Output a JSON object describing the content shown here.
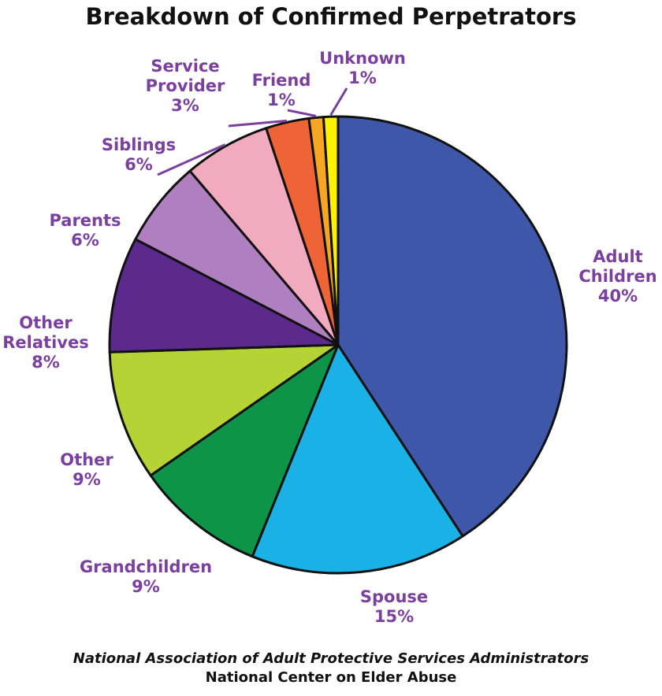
{
  "chart_data": {
    "type": "pie",
    "title": "Breakdown of Confirmed Perpetrators",
    "slices": [
      {
        "label": "Adult Children",
        "value": 40,
        "display": "40%",
        "color": "#3f57a8"
      },
      {
        "label": "Spouse",
        "value": 15,
        "display": "15%",
        "color": "#19b1e6"
      },
      {
        "label": "Grandchildren",
        "value": 9,
        "display": "9%",
        "color": "#0d9448"
      },
      {
        "label": "Other",
        "value": 9,
        "display": "9%",
        "color": "#b5d334"
      },
      {
        "label": "Other Relatives",
        "value": 8,
        "display": "8%",
        "color": "#5b2a8c"
      },
      {
        "label": "Parents",
        "value": 6,
        "display": "6%",
        "color": "#b07fbf"
      },
      {
        "label": "Siblings",
        "value": 6,
        "display": "6%",
        "color": "#f2aac0"
      },
      {
        "label": "Service Provider",
        "value": 3,
        "display": "3%",
        "color": "#ee6437"
      },
      {
        "label": "Friend",
        "value": 1,
        "display": "1%",
        "color": "#f6a623"
      },
      {
        "label": "Unknown",
        "value": 1,
        "display": "1%",
        "color": "#fff200"
      }
    ],
    "start": "top",
    "direction": "clockwise",
    "label_color": "#7b3fa0",
    "legend": "none"
  },
  "source": {
    "line1": "National Association of Adult Protective Services Administrators",
    "line2": "National Center on Elder Abuse"
  }
}
